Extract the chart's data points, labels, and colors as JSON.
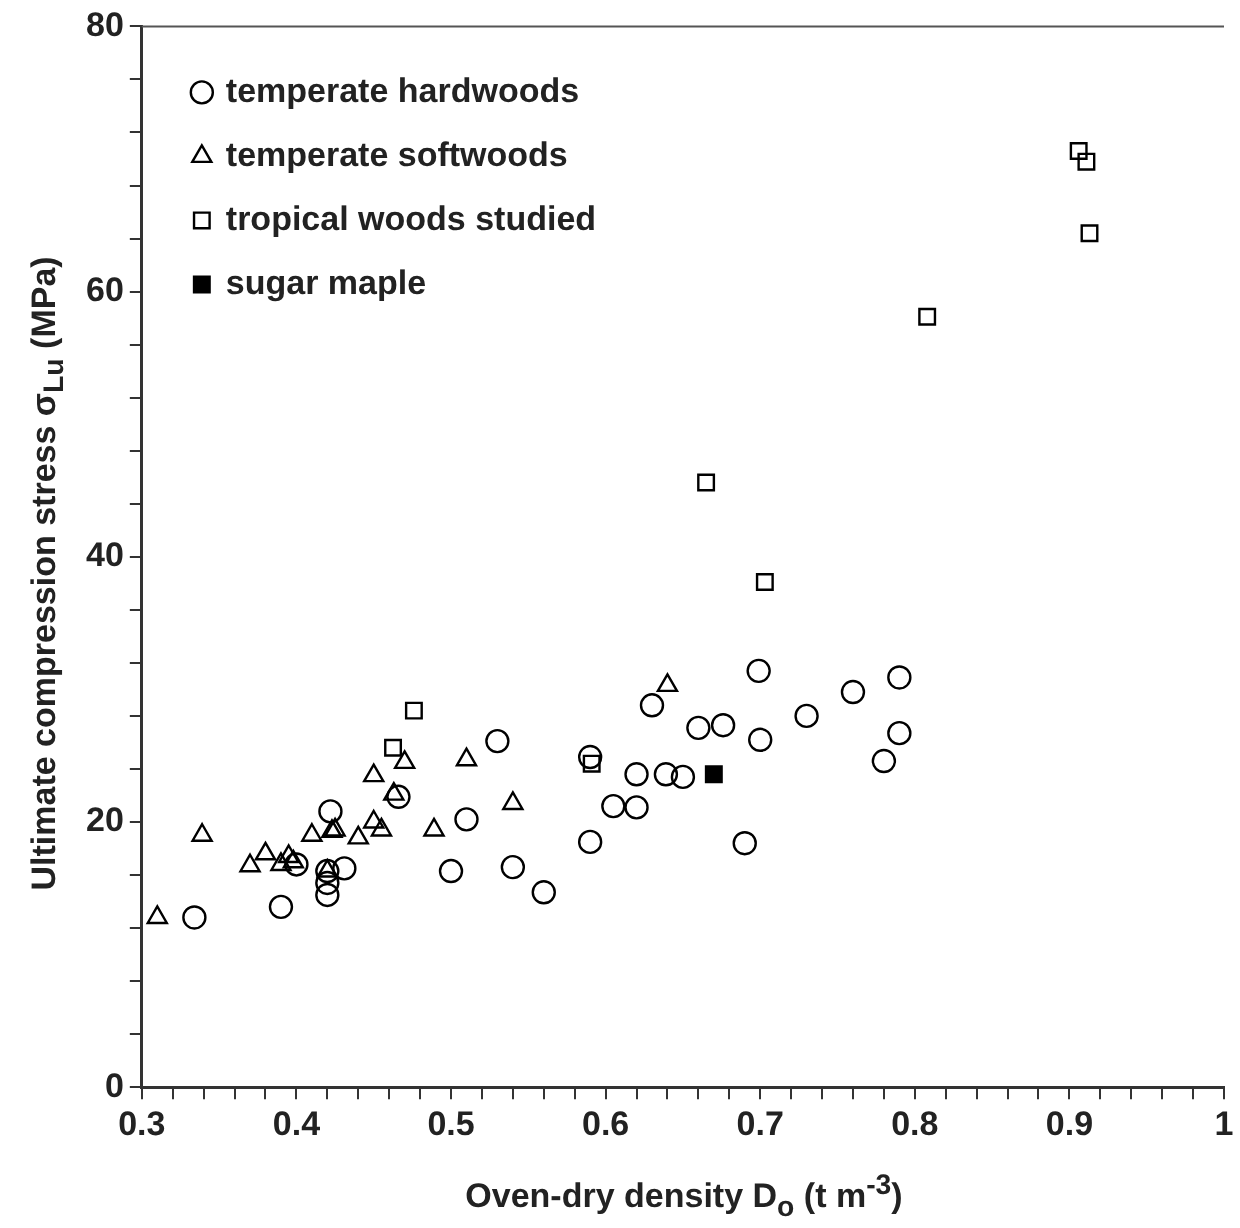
{
  "chart_data": {
    "type": "scatter",
    "xlabel": "Oven-dry density  D$_{o}$  (t m$^{-3}$)",
    "ylabel": "Ultimate compression stress  σ$_{Lu}$  (MPa)",
    "xlim": [
      0.3,
      1
    ],
    "ylim": [
      0,
      80
    ],
    "xticks": [
      0.3,
      {
        "value": 0.32,
        "label": null
      },
      {
        "value": 0.34,
        "label": null
      },
      {
        "value": 0.36,
        "label": null
      },
      {
        "value": 0.38,
        "label": null
      },
      0.4,
      {
        "value": 0.42,
        "label": null
      },
      {
        "value": 0.44,
        "label": null
      },
      {
        "value": 0.46,
        "label": null
      },
      {
        "value": 0.48,
        "label": null
      },
      0.5,
      {
        "value": 0.52,
        "label": null
      },
      {
        "value": 0.54,
        "label": null
      },
      {
        "value": 0.56,
        "label": null
      },
      {
        "value": 0.58,
        "label": null
      },
      0.6,
      {
        "value": 0.62,
        "label": null
      },
      {
        "value": 0.64,
        "label": null
      },
      {
        "value": 0.66,
        "label": null
      },
      {
        "value": 0.68,
        "label": null
      },
      0.7,
      {
        "value": 0.72,
        "label": null
      },
      {
        "value": 0.74,
        "label": null
      },
      {
        "value": 0.76,
        "label": null
      },
      {
        "value": 0.78,
        "label": null
      },
      0.8,
      {
        "value": 0.82,
        "label": null
      },
      {
        "value": 0.84,
        "label": null
      },
      {
        "value": 0.86,
        "label": null
      },
      {
        "value": 0.88,
        "label": null
      },
      0.9,
      {
        "value": 0.92,
        "label": null
      },
      {
        "value": 0.94,
        "label": null
      },
      {
        "value": 0.96,
        "label": null
      },
      {
        "value": 0.98,
        "label": null
      },
      1
    ],
    "yticks": [
      0,
      {
        "value": 4,
        "label": null
      },
      {
        "value": 8,
        "label": null
      },
      {
        "value": 12,
        "label": null
      },
      {
        "value": 16,
        "label": null
      },
      20,
      {
        "value": 24,
        "label": null
      },
      {
        "value": 28,
        "label": null
      },
      {
        "value": 32,
        "label": null
      },
      {
        "value": 36,
        "label": null
      },
      40,
      {
        "value": 44,
        "label": null
      },
      {
        "value": 48,
        "label": null
      },
      {
        "value": 52,
        "label": null
      },
      {
        "value": 56,
        "label": null
      },
      60,
      {
        "value": 64,
        "label": null
      },
      {
        "value": 68,
        "label": null
      },
      {
        "value": 72,
        "label": null
      },
      {
        "value": 76,
        "label": null
      },
      80
    ],
    "grid": false,
    "legend": "top left",
    "series": [
      {
        "name": "temperate hardwoods",
        "color": "#000000",
        "marker": "circle",
        "x": [
          0.334,
          0.39,
          0.4,
          0.42,
          0.42,
          0.42,
          0.422,
          0.431,
          0.466,
          0.5,
          0.51,
          0.53,
          0.54,
          0.56,
          0.59,
          0.59,
          0.605,
          0.62,
          0.62,
          0.63,
          0.639,
          0.65,
          0.66,
          0.676,
          0.7,
          0.699,
          0.69,
          0.73,
          0.76,
          0.78,
          0.79,
          0.79
        ],
        "values": [
          12.8,
          13.6,
          16.8,
          14.5,
          15.4,
          16.3,
          20.8,
          16.5,
          21.9,
          16.3,
          20.2,
          26.1,
          16.6,
          14.7,
          24.9,
          18.5,
          21.2,
          23.6,
          21.1,
          28.8,
          23.6,
          23.4,
          27.1,
          27.3,
          26.2,
          31.4,
          18.4,
          28.0,
          29.8,
          24.6,
          30.9,
          26.7
        ]
      },
      {
        "name": "temperate softwoods",
        "color": "#000000",
        "marker": "triangle",
        "x": [
          0.31,
          0.339,
          0.37,
          0.38,
          0.39,
          0.395,
          0.398,
          0.41,
          0.42,
          0.423,
          0.425,
          0.44,
          0.45,
          0.45,
          0.455,
          0.463,
          0.47,
          0.489,
          0.51,
          0.54,
          0.64
        ],
        "values": [
          12.8,
          19.0,
          16.7,
          17.6,
          16.8,
          17.4,
          17.0,
          19.0,
          16.3,
          19.3,
          19.4,
          18.8,
          23.5,
          20.0,
          19.4,
          22.1,
          24.5,
          19.4,
          24.7,
          21.4,
          30.3
        ]
      },
      {
        "name": "tropical woods studied",
        "color": "#000000",
        "marker": "square",
        "x": [
          0.4625,
          0.476,
          0.591,
          0.665,
          0.703,
          0.808,
          0.906,
          0.911,
          0.913
        ],
        "values": [
          25.6,
          28.4,
          24.4,
          45.6,
          38.1,
          58.1,
          70.6,
          69.8,
          64.4
        ]
      },
      {
        "name": "sugar maple",
        "color": "#000000",
        "marker": "square",
        "x": [
          0.67
        ],
        "values": [
          23.6
        ]
      }
    ]
  }
}
